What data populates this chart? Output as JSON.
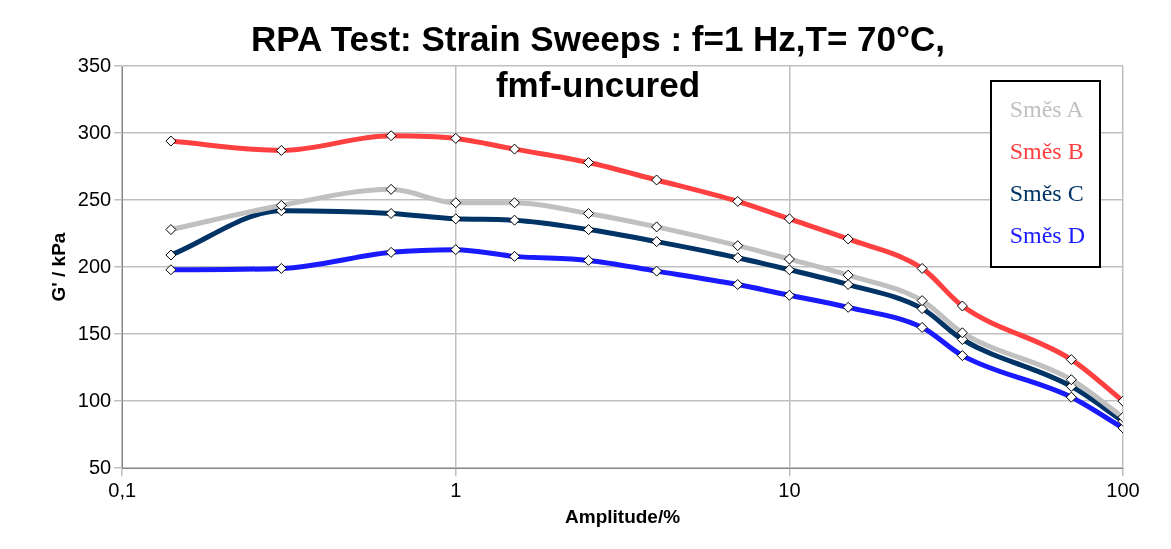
{
  "chart_data": {
    "type": "line",
    "title": [
      "RPA Test: Strain Sweeps : f=1 Hz,T= 70°C,",
      "fmf-uncured"
    ],
    "xlabel": "Amplitude/%",
    "ylabel": "G' / kPa",
    "x": [
      0.14,
      0.3,
      0.64,
      1,
      1.5,
      2.5,
      4,
      7,
      10,
      15,
      25,
      33,
      70,
      100
    ],
    "series": [
      {
        "name": "Směs A",
        "color": "#c0c0c0",
        "values": [
          228,
          246,
          258,
          248,
          248,
          240,
          230,
          216,
          206,
          194,
          175,
          151,
          116,
          88
        ]
      },
      {
        "name": "Směs B",
        "color": "#ff4040",
        "values": [
          294,
          287,
          298,
          296,
          288,
          278,
          265,
          249,
          236,
          221,
          199,
          171,
          131,
          100
        ]
      },
      {
        "name": "Směs C",
        "color": "#003366",
        "values": [
          209,
          242,
          240,
          236,
          235,
          228,
          219,
          207,
          198,
          187,
          169,
          146,
          111,
          85
        ]
      },
      {
        "name": "Směs D",
        "color": "#1a1aff",
        "values": [
          198,
          199,
          211,
          213,
          208,
          205,
          197,
          187,
          179,
          170,
          155,
          134,
          103,
          80
        ]
      }
    ],
    "log": "x",
    "xlim": [
      0.1,
      100
    ],
    "xticks": [
      {
        "value": 0.1,
        "label": "0,1"
      },
      1,
      10,
      100
    ],
    "ylim": [
      50,
      350
    ],
    "yticks": [
      50,
      100,
      150,
      200,
      250,
      300,
      350
    ],
    "grid": true,
    "legend": "top right",
    "marker": "diamond",
    "line_style": "solid"
  }
}
